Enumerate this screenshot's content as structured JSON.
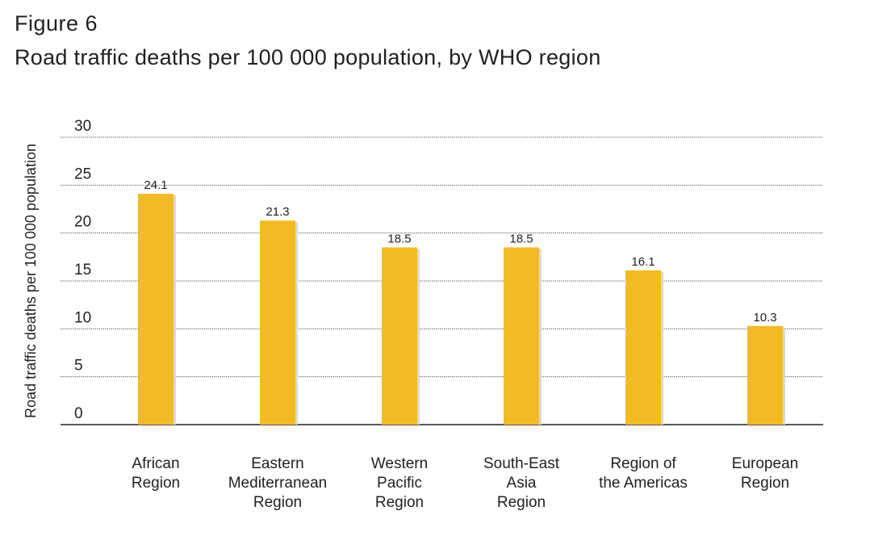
{
  "figure_label": "Figure 6",
  "title": "Road traffic deaths per 100 000 population, by WHO region",
  "colors": {
    "bar": "#f2bb26",
    "bar_shadow": "#d9d9d9",
    "grid": "#6f6f6f",
    "axis": "#231f20"
  },
  "chart_data": {
    "type": "bar",
    "categories": [
      [
        "African",
        "Region"
      ],
      [
        "Eastern",
        "Mediterranean",
        "Region"
      ],
      [
        "Western",
        "Pacific",
        "Region"
      ],
      [
        "South-East",
        "Asia",
        "Region"
      ],
      [
        "Region of",
        "the Americas"
      ],
      [
        "European",
        "Region"
      ]
    ],
    "values": [
      24.1,
      21.3,
      18.5,
      18.5,
      16.1,
      10.3
    ],
    "value_labels": [
      "24.1",
      "21.3",
      "18.5",
      "18.5",
      "16.1",
      "10.3"
    ],
    "ylabel": "Road traffic deaths per 100 000 population",
    "xlabel": "",
    "ylim": [
      0,
      30
    ],
    "yticks": [
      0,
      5,
      10,
      15,
      20,
      25,
      30
    ],
    "grid": true
  }
}
